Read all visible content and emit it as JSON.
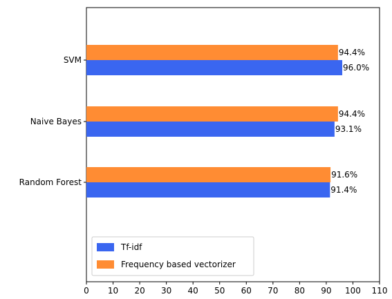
{
  "chart_data": {
    "type": "bar",
    "orientation": "horizontal",
    "categories": [
      "SVM",
      "Naive Bayes",
      "Random Forest"
    ],
    "series": [
      {
        "name": "Tf-idf",
        "values": [
          96.0,
          93.1,
          91.4
        ],
        "labels": [
          "96.0%",
          "93.1%",
          "91.4%"
        ],
        "color": "#3a66f0"
      },
      {
        "name": "Frequency based vectorizer",
        "values": [
          94.4,
          94.4,
          91.6
        ],
        "labels": [
          "94.4%",
          "94.4%",
          "91.6%"
        ],
        "color": "#ff8c33"
      }
    ],
    "xlim": [
      0,
      110
    ],
    "xticks": [
      "0",
      "10",
      "20",
      "30",
      "40",
      "50",
      "60",
      "70",
      "80",
      "90",
      "100",
      "110"
    ],
    "title": "",
    "xlabel": "",
    "ylabel": "",
    "grid": false,
    "legend": "lower-left"
  }
}
